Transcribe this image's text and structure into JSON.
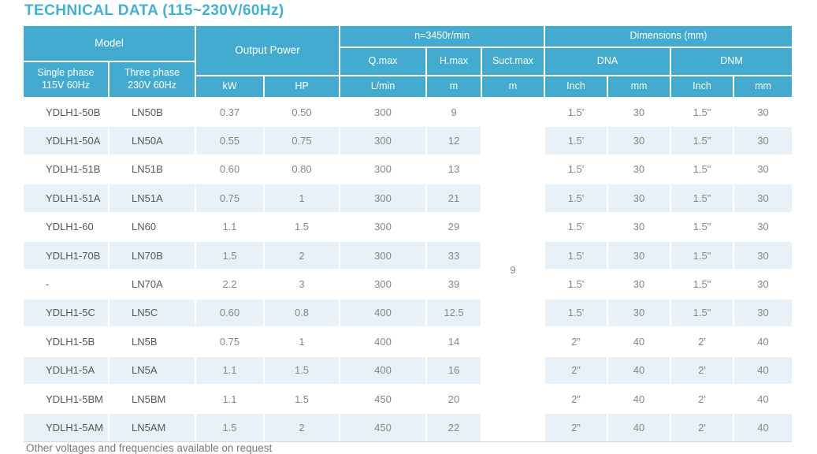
{
  "title": "TECHNICAL DATA (115~230V/60Hz)",
  "footer_note": "Other voltages and frequencies available on request",
  "colors": {
    "header_bg": "#44abd0",
    "stripe": "#e9f1f8",
    "title_color": "#3fb1d8",
    "model_text": "#56575a",
    "value_text": "#84868a",
    "footer_text": "#77787b"
  },
  "table": {
    "header": {
      "model": "Model",
      "single_phase": "Single phase\n115V 60Hz",
      "three_phase": "Three phase\n230V 60Hz",
      "output_power": "Output Power",
      "kw": "kW",
      "hp": "HP",
      "speed_group": "n=3450r/min",
      "q_max": "Q.max",
      "h_max": "H.max",
      "suct_max": "Suct.max",
      "l_min": "L/min",
      "m1": "m",
      "m2": "m",
      "dimensions": "Dimensions (mm)",
      "dna": "DNA",
      "dnm": "DNM",
      "inch1": "Inch",
      "mm1": "mm",
      "inch2": "Inch",
      "mm2": "mm"
    },
    "suct_max_value": "9",
    "columns": [
      "model-single-phase",
      "model-three-phase",
      "output-kw",
      "output-hp",
      "q-max",
      "h-max",
      "dna-inch",
      "dna-mm",
      "dnm-inch",
      "dnm-mm"
    ],
    "rows": [
      [
        "YDLH1-50B",
        "LN50B",
        "0.37",
        "0.50",
        "300",
        "9",
        "1.5'",
        "30",
        "1.5\"",
        "30"
      ],
      [
        "YDLH1-50A",
        "LN50A",
        "0.55",
        "0.75",
        "300",
        "12",
        "1.5'",
        "30",
        "1.5\"",
        "30"
      ],
      [
        "YDLH1-51B",
        "LN51B",
        "0.60",
        "0.80",
        "300",
        "13",
        "1.5'",
        "30",
        "1.5\"",
        "30"
      ],
      [
        "YDLH1-51A",
        "LN51A",
        "0.75",
        "1",
        "300",
        "21",
        "1.5'",
        "30",
        "1.5\"",
        "30"
      ],
      [
        "YDLH1-60",
        "LN60",
        "1.1",
        "1.5",
        "300",
        "29",
        "1.5'",
        "30",
        "1.5\"",
        "30"
      ],
      [
        "YDLH1-70B",
        "LN70B",
        "1.5",
        "2",
        "300",
        "33",
        "1.5'",
        "30",
        "1.5\"",
        "30"
      ],
      [
        "-",
        "LN70A",
        "2.2",
        "3",
        "300",
        "39",
        "1.5'",
        "30",
        "1.5\"",
        "30"
      ],
      [
        "YDLH1-5C",
        "LN5C",
        "0.60",
        "0.8",
        "400",
        "12.5",
        "1.5'",
        "30",
        "1.5\"",
        "30"
      ],
      [
        "YDLH1-5B",
        "LN5B",
        "0.75",
        "1",
        "400",
        "14",
        "2\"",
        "40",
        "2'",
        "40"
      ],
      [
        "YDLH1-5A",
        "LN5A",
        "1.1",
        "1.5",
        "400",
        "16",
        "2\"",
        "40",
        "2'",
        "40"
      ],
      [
        "YDLH1-5BM",
        "LN5BM",
        "1.1",
        "1.5",
        "450",
        "20",
        "2\"",
        "40",
        "2'",
        "40"
      ],
      [
        "YDLH1-5AM",
        "LN5AM",
        "1.5",
        "2",
        "450",
        "22",
        "2\"",
        "40",
        "2'",
        "40"
      ]
    ]
  }
}
